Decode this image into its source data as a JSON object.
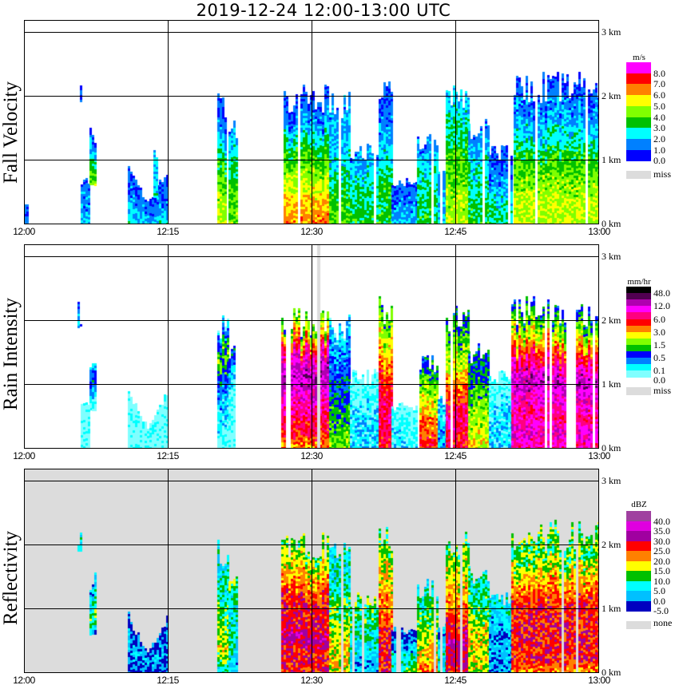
{
  "title": "2019-12-24   12:00-13:00 UTC",
  "chart_data": [
    {
      "type": "heatmap",
      "title": "Fall Velocity",
      "xlabel": "",
      "ylabel": "Fall Velocity",
      "x_range_minutes": [
        0,
        60
      ],
      "x_ticks": [
        "12:00",
        "12:15",
        "12:30",
        "12:45",
        "13:00"
      ],
      "y_range_km": [
        0,
        3.2
      ],
      "y_ticks": [
        "0 km",
        "1 km",
        "2 km",
        "3 km"
      ],
      "background": "#ffffff",
      "colorbar": {
        "unit": "m/s",
        "labels": [
          "8.0",
          "7.0",
          "6.0",
          "5.0",
          "4.0",
          "3.0",
          "2.0",
          "1.0",
          "0.0"
        ],
        "colors": [
          "#ff00ff",
          "#ff0000",
          "#ff8000",
          "#ffff00",
          "#80ff00",
          "#00c000",
          "#00ffff",
          "#0080ff",
          "#0000ff"
        ],
        "missing_label": "miss",
        "missing_color": "#dcdcdc"
      },
      "echoes": [
        {
          "t0": 0.0,
          "t1": 0.4,
          "top": 0.3,
          "profile": [
            1.5,
            1.0
          ]
        },
        {
          "t0": 5.6,
          "t1": 5.9,
          "top": 2.2,
          "base": 1.9,
          "profile": [
            1.0,
            0.5
          ]
        },
        {
          "t0": 5.9,
          "t1": 6.8,
          "top": 0.7,
          "profile": [
            2.0,
            1.2
          ]
        },
        {
          "t0": 6.8,
          "t1": 7.6,
          "top": 1.5,
          "base": 0.6,
          "profile": [
            4.5,
            3.5,
            2.0,
            1.0
          ]
        },
        {
          "t0": 10.8,
          "t1": 14.9,
          "top": 0.9,
          "profile": [
            2.5,
            1.5,
            1.0
          ],
          "shape": "v"
        },
        {
          "t0": 13.5,
          "t1": 14.0,
          "top": 1.2,
          "base": 0.4,
          "profile": [
            2.5,
            2.0
          ]
        },
        {
          "t0": 20.2,
          "t1": 21.3,
          "top": 2.0,
          "profile": [
            5.0,
            4.5,
            3.5,
            1.5,
            1.0
          ]
        },
        {
          "t0": 21.3,
          "t1": 22.3,
          "top": 1.6,
          "profile": [
            4.5,
            4.0,
            3.0,
            1.5
          ]
        },
        {
          "t0": 26.8,
          "t1": 31.8,
          "top": 2.1,
          "profile": [
            6.5,
            6.0,
            5.0,
            4.0,
            3.0,
            1.5,
            1.0
          ]
        },
        {
          "t0": 31.8,
          "t1": 34.0,
          "top": 2.0,
          "profile": [
            4.0,
            3.5,
            2.5,
            2.0,
            1.5
          ]
        },
        {
          "t0": 34.0,
          "t1": 37.0,
          "top": 1.2,
          "profile": [
            3.5,
            3.0,
            2.5,
            1.5
          ]
        },
        {
          "t0": 37.0,
          "t1": 38.3,
          "top": 2.3,
          "profile": [
            3.5,
            3.5,
            2.5,
            1.5,
            1.0
          ]
        },
        {
          "t0": 38.3,
          "t1": 41.0,
          "top": 0.7,
          "profile": [
            2.0,
            1.0
          ]
        },
        {
          "t0": 41.0,
          "t1": 43.2,
          "top": 1.4,
          "profile": [
            3.5,
            3.0,
            2.5,
            1.5
          ]
        },
        {
          "t0": 43.2,
          "t1": 44.0,
          "top": 0.8,
          "profile": [
            2.5,
            1.5
          ]
        },
        {
          "t0": 44.0,
          "t1": 46.3,
          "top": 2.2,
          "profile": [
            5.0,
            4.5,
            4.0,
            3.0,
            2.0
          ]
        },
        {
          "t0": 46.3,
          "t1": 48.5,
          "top": 1.6,
          "profile": [
            3.5,
            3.0,
            2.5,
            1.5
          ]
        },
        {
          "t0": 48.5,
          "t1": 50.8,
          "top": 1.2,
          "profile": [
            3.0,
            2.5,
            1.5,
            1.0
          ]
        },
        {
          "t0": 50.8,
          "t1": 60.0,
          "top": 2.3,
          "profile": [
            5.0,
            5.0,
            4.5,
            4.0,
            3.0,
            2.0,
            1.5,
            1.0
          ]
        }
      ]
    },
    {
      "type": "heatmap",
      "title": "Rain Intensity",
      "xlabel": "",
      "ylabel": "Rain Intensity",
      "x_range_minutes": [
        0,
        60
      ],
      "x_ticks": [
        "12:00",
        "12:15",
        "12:30",
        "12:45",
        "13:00"
      ],
      "y_range_km": [
        0,
        3.2
      ],
      "y_ticks": [
        "0 km",
        "1 km",
        "2 km",
        "3 km"
      ],
      "background": "#ffffff",
      "missing_column_minute": 30.6,
      "colorbar": {
        "unit": "mm/hr",
        "labels": [
          "48.0",
          "12.0",
          "6.0",
          "3.0",
          "1.5",
          "0.5",
          "0.1",
          "0.0"
        ],
        "colors": [
          "#000000",
          "#500050",
          "#b000b0",
          "#ff00ff",
          "#ff0080",
          "#ff0000",
          "#ff8000",
          "#ffff00",
          "#80ff00",
          "#00c000",
          "#0000ff",
          "#0080ff",
          "#00ffff",
          "#80ffff"
        ],
        "missing_label": "miss",
        "missing_color": "#dcdcdc"
      },
      "echoes": [
        {
          "t0": 5.6,
          "t1": 5.9,
          "top": 2.2,
          "base": 1.9,
          "profile": [
            11,
            11
          ]
        },
        {
          "t0": 6.8,
          "t1": 7.6,
          "top": 1.5,
          "base": 0.6,
          "profile": [
            13,
            12,
            10,
            12
          ]
        },
        {
          "t0": 5.9,
          "t1": 6.8,
          "top": 0.7,
          "profile": [
            13,
            13
          ]
        },
        {
          "t0": 10.8,
          "t1": 14.9,
          "top": 0.9,
          "profile": [
            13,
            13,
            13
          ],
          "shape": "v"
        },
        {
          "t0": 20.2,
          "t1": 21.3,
          "top": 2.0,
          "profile": [
            13,
            12,
            11,
            8,
            12
          ]
        },
        {
          "t0": 21.3,
          "t1": 22.3,
          "top": 1.6,
          "profile": [
            13,
            13,
            12,
            10
          ]
        },
        {
          "t0": 26.8,
          "t1": 31.8,
          "top": 2.1,
          "profile": [
            6,
            5,
            4,
            3,
            2,
            3,
            6,
            9
          ]
        },
        {
          "t0": 31.8,
          "t1": 34.0,
          "top": 2.0,
          "profile": [
            8,
            9,
            10,
            11,
            12
          ]
        },
        {
          "t0": 34.0,
          "t1": 37.0,
          "top": 1.2,
          "profile": [
            12,
            12,
            13
          ]
        },
        {
          "t0": 37.0,
          "t1": 38.3,
          "top": 2.3,
          "profile": [
            5,
            4,
            5,
            7,
            9
          ]
        },
        {
          "t0": 38.3,
          "t1": 41.0,
          "top": 0.7,
          "profile": [
            12,
            13
          ]
        },
        {
          "t0": 41.0,
          "t1": 43.2,
          "top": 1.4,
          "profile": [
            5,
            6,
            8,
            10
          ]
        },
        {
          "t0": 43.2,
          "t1": 44.0,
          "top": 0.8,
          "profile": [
            11,
            12
          ]
        },
        {
          "t0": 44.0,
          "t1": 46.3,
          "top": 2.2,
          "profile": [
            5,
            4,
            6,
            8,
            10
          ]
        },
        {
          "t0": 46.3,
          "t1": 48.5,
          "top": 1.6,
          "profile": [
            7,
            8,
            9,
            10
          ]
        },
        {
          "t0": 48.5,
          "t1": 50.8,
          "top": 1.2,
          "profile": [
            12,
            12,
            13
          ]
        },
        {
          "t0": 50.8,
          "t1": 60.0,
          "top": 2.3,
          "profile": [
            4,
            3,
            4,
            3,
            2,
            4,
            6,
            8,
            10
          ]
        }
      ]
    },
    {
      "type": "heatmap",
      "title": "Reflectivity",
      "xlabel": "",
      "ylabel": "Reflectivity",
      "x_range_minutes": [
        0,
        60
      ],
      "x_ticks": [
        "12:00",
        "12:15",
        "12:30",
        "12:45",
        "13:00"
      ],
      "y_range_km": [
        0,
        3.2
      ],
      "y_ticks": [
        "0 km",
        "1 km",
        "2 km",
        "3 km"
      ],
      "background": "#dcdcdc",
      "colorbar": {
        "unit": "dBZ",
        "labels": [
          "40.0",
          "35.0",
          "30.0",
          "25.0",
          "20.0",
          "15.0",
          "10.0",
          "5.0",
          "0.0",
          "-5.0"
        ],
        "colors": [
          "#a040a0",
          "#e000e0",
          "#a000a0",
          "#ff0000",
          "#ff8000",
          "#ffff00",
          "#00c000",
          "#00ffff",
          "#00c0ff",
          "#0000c0"
        ],
        "missing_label": "none",
        "missing_color": "#dcdcdc"
      },
      "echoes": [
        {
          "t0": 5.6,
          "t1": 5.9,
          "top": 2.2,
          "base": 1.9,
          "profile": [
            7,
            7
          ]
        },
        {
          "t0": 6.8,
          "t1": 7.6,
          "top": 1.5,
          "base": 0.6,
          "profile": [
            8,
            6,
            7,
            8
          ]
        },
        {
          "t0": 10.8,
          "t1": 14.9,
          "top": 0.9,
          "profile": [
            9,
            8,
            9
          ],
          "shape": "v"
        },
        {
          "t0": 20.2,
          "t1": 21.3,
          "top": 2.0,
          "profile": [
            7,
            5,
            6,
            7,
            7
          ]
        },
        {
          "t0": 21.3,
          "t1": 22.3,
          "top": 1.6,
          "profile": [
            8,
            7,
            7,
            6
          ]
        },
        {
          "t0": 26.8,
          "t1": 31.8,
          "top": 2.1,
          "profile": [
            3,
            3,
            2,
            3,
            3,
            4,
            5,
            6
          ]
        },
        {
          "t0": 31.8,
          "t1": 34.0,
          "top": 2.0,
          "profile": [
            5,
            5,
            6,
            7,
            7
          ]
        },
        {
          "t0": 34.0,
          "t1": 37.0,
          "top": 1.2,
          "profile": [
            8,
            7,
            6
          ]
        },
        {
          "t0": 37.0,
          "t1": 38.3,
          "top": 2.3,
          "profile": [
            3,
            3,
            4,
            5,
            6
          ]
        },
        {
          "t0": 38.3,
          "t1": 41.0,
          "top": 0.7,
          "profile": [
            6,
            9
          ]
        },
        {
          "t0": 41.0,
          "t1": 43.2,
          "top": 1.4,
          "profile": [
            4,
            5,
            6,
            7
          ]
        },
        {
          "t0": 43.2,
          "t1": 44.0,
          "top": 0.8,
          "profile": [
            7,
            8
          ]
        },
        {
          "t0": 44.0,
          "t1": 46.3,
          "top": 2.2,
          "profile": [
            3,
            2,
            4,
            5,
            6
          ]
        },
        {
          "t0": 46.3,
          "t1": 48.5,
          "top": 1.6,
          "profile": [
            5,
            5,
            6,
            7
          ]
        },
        {
          "t0": 48.5,
          "t1": 50.8,
          "top": 1.2,
          "profile": [
            8,
            8,
            7
          ]
        },
        {
          "t0": 50.8,
          "t1": 60.0,
          "top": 2.3,
          "profile": [
            4,
            3,
            3,
            3,
            3,
            4,
            5,
            6,
            6
          ]
        }
      ]
    }
  ]
}
